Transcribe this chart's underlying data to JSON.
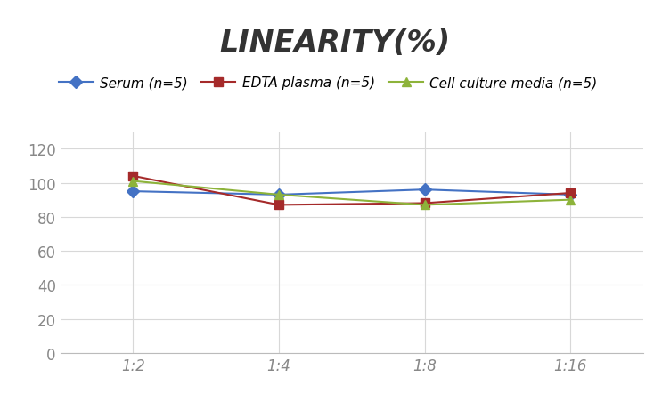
{
  "title": "LINEARITY(%)",
  "x_labels": [
    "1:2",
    "1:4",
    "1:8",
    "1:16"
  ],
  "series": [
    {
      "label": "Serum (n=5)",
      "values": [
        95,
        93,
        96,
        93
      ],
      "color": "#4472C4",
      "marker": "D",
      "markersize": 7
    },
    {
      "label": "EDTA plasma (n=5)",
      "values": [
        104,
        87,
        88,
        94
      ],
      "color": "#A52A2A",
      "marker": "s",
      "markersize": 7
    },
    {
      "label": "Cell culture media (n=5)",
      "values": [
        101,
        93,
        87,
        90
      ],
      "color": "#8DB33A",
      "marker": "^",
      "markersize": 7
    }
  ],
  "ylim": [
    0,
    130
  ],
  "yticks": [
    0,
    20,
    40,
    60,
    80,
    100,
    120
  ],
  "grid_color": "#D8D8D8",
  "background_color": "#FFFFFF",
  "title_fontsize": 24,
  "legend_fontsize": 11,
  "tick_fontsize": 12
}
